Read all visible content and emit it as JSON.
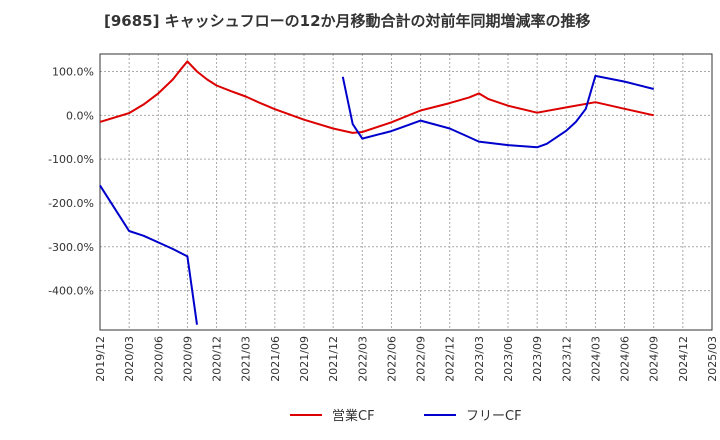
{
  "chart_data": {
    "type": "line",
    "title": "[9685]  キャッシュフローの12か月移動合計の対前年同期増減率の推移",
    "xlabel": "",
    "ylabel": "",
    "x_ticks": [
      "2019/12",
      "2020/03",
      "2020/06",
      "2020/09",
      "2020/12",
      "2021/03",
      "2021/06",
      "2021/09",
      "2021/12",
      "2022/03",
      "2022/06",
      "2022/09",
      "2022/12",
      "2023/03",
      "2023/06",
      "2023/09",
      "2023/12",
      "2024/03",
      "2024/06",
      "2024/09",
      "2024/12",
      "2025/03"
    ],
    "y_ticks": [
      100,
      0,
      -100,
      -200,
      -300,
      -400
    ],
    "y_tick_labels": [
      "100.0%",
      "0.0%",
      "-100.0%",
      "-200.0%",
      "-300.0%",
      "-400.0%"
    ],
    "ylim": [
      -490,
      140
    ],
    "grid": true,
    "legend_position": "bottom",
    "series": [
      {
        "name": "営業CF",
        "color": "#dd0000",
        "points": [
          [
            0,
            -15
          ],
          [
            1,
            5
          ],
          [
            1.5,
            25
          ],
          [
            2,
            50
          ],
          [
            2.5,
            82
          ],
          [
            2.75,
            103
          ],
          [
            3,
            123
          ],
          [
            3.33,
            100
          ],
          [
            3.67,
            82
          ],
          [
            4,
            68
          ],
          [
            4.5,
            55
          ],
          [
            5,
            43
          ],
          [
            5.5,
            28
          ],
          [
            6,
            14
          ],
          [
            7,
            -10
          ],
          [
            8,
            -30
          ],
          [
            8.67,
            -40
          ],
          [
            9,
            -38
          ],
          [
            10,
            -16
          ],
          [
            11,
            11
          ],
          [
            12,
            28
          ],
          [
            12.67,
            41
          ],
          [
            13,
            50
          ],
          [
            13.33,
            37
          ],
          [
            14,
            22
          ],
          [
            15,
            6
          ],
          [
            16,
            18
          ],
          [
            17,
            30
          ],
          [
            18,
            15
          ],
          [
            19,
            0
          ]
        ]
      },
      {
        "name": "フリーCF",
        "color": "#0000cc",
        "points": [
          [
            0,
            -160
          ],
          [
            1,
            -264
          ],
          [
            1.5,
            -275
          ],
          [
            2,
            -290
          ],
          [
            2.5,
            -305
          ],
          [
            3,
            -322
          ],
          [
            3.33,
            -478
          ],
          null,
          [
            8.33,
            88
          ],
          [
            8.67,
            -20
          ],
          [
            9,
            -53
          ],
          [
            10,
            -36
          ],
          [
            11,
            -12
          ],
          [
            12,
            -30
          ],
          [
            12.5,
            -45
          ],
          [
            13,
            -60
          ],
          [
            14,
            -68
          ],
          [
            15,
            -73
          ],
          [
            15.33,
            -65
          ],
          [
            16,
            -35
          ],
          [
            16.33,
            -15
          ],
          [
            16.67,
            15
          ],
          [
            17,
            90
          ],
          [
            18,
            77
          ],
          [
            19,
            60
          ]
        ]
      }
    ]
  }
}
